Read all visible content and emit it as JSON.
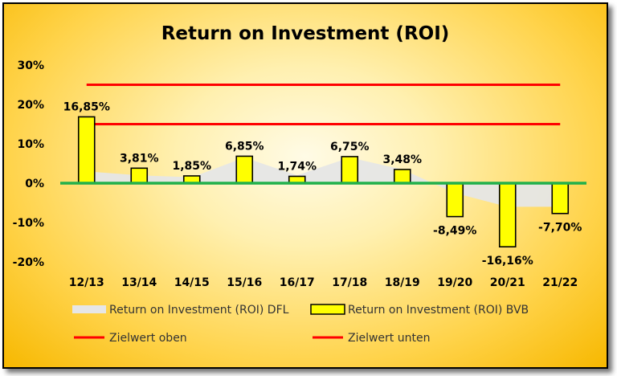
{
  "chart_data": {
    "type": "bar",
    "title": "Return on Investment (ROI)",
    "categories": [
      "12/13",
      "13/14",
      "14/15",
      "15/16",
      "16/17",
      "17/18",
      "18/19",
      "19/20",
      "20/21",
      "21/22"
    ],
    "y_ticks": [
      "30%",
      "20%",
      "10%",
      "0%",
      "-10%",
      "-20%"
    ],
    "ylim": [
      -20,
      30
    ],
    "y_unit": "%",
    "grid": false,
    "legend_position": "bottom",
    "series": [
      {
        "name": "Return on Investment (ROI) DFL",
        "kind": "area",
        "color": "#e6e6e6",
        "values": [
          3,
          2,
          1.5,
          6.5,
          2,
          6.5,
          3.5,
          -2.5,
          -6,
          -6
        ]
      },
      {
        "name": "Return on Investment (ROI) BVB",
        "kind": "bar",
        "color": "#ffff00",
        "values": [
          16.85,
          3.81,
          1.85,
          6.85,
          1.74,
          6.75,
          3.48,
          -8.49,
          -16.16,
          -7.7
        ],
        "labels": [
          "16,85%",
          "3,81%",
          "1,85%",
          "6,85%",
          "1,74%",
          "6,75%",
          "3,48%",
          "-8,49%",
          "-16,16%",
          "-7,70%"
        ]
      },
      {
        "name": "Zielwert oben",
        "kind": "line",
        "color": "#ff0000",
        "values": [
          25,
          25,
          25,
          25,
          25,
          25,
          25,
          25,
          25,
          25
        ]
      },
      {
        "name": "Zielwert unten",
        "kind": "line",
        "color": "#ff0000",
        "values": [
          15,
          15,
          15,
          15,
          15,
          15,
          15,
          15,
          15,
          15
        ]
      }
    ],
    "zero_line_color": "#21b04b"
  }
}
